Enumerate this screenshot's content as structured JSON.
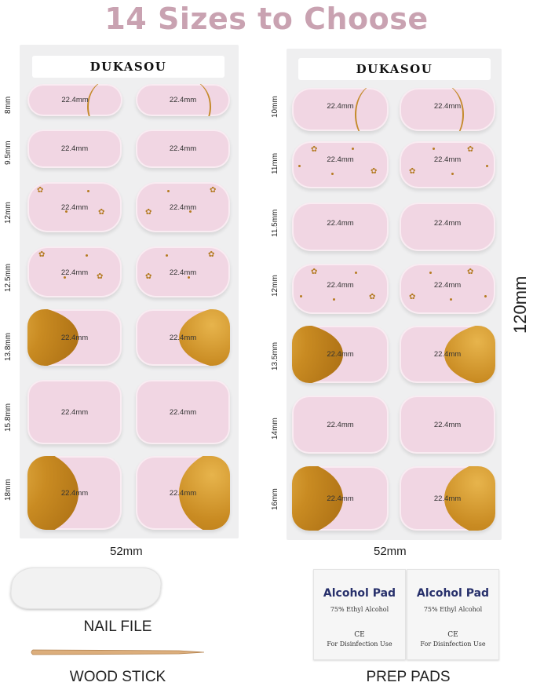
{
  "title": "14 Sizes to Choose",
  "brand": "DUKASOU",
  "nail_length_label": "22.4mm",
  "left_sheet": {
    "sizes": [
      "8mm",
      "9.5mm",
      "12mm",
      "12.5mm",
      "13.8mm",
      "15.8mm",
      "18mm"
    ],
    "width_label": "52mm"
  },
  "right_sheet": {
    "sizes": [
      "10mm",
      "11mm",
      "11.5mm",
      "12mm",
      "13.5mm",
      "14mm",
      "16mm"
    ],
    "width_label": "52mm",
    "height_label": "120mm"
  },
  "accessories": {
    "nail_file": "NAIL FILE",
    "wood_stick": "WOOD STICK",
    "prep_pads": "PREP PADS",
    "pad_title": "Alcohol Pad",
    "pad_subtitle": "75% Ethyl Alcohol",
    "pad_mark": "CE",
    "pad_use": "For Disinfection Use"
  },
  "colors": {
    "title": "#c9a2b1",
    "nail_pink": "#f1d6e3",
    "gold": "#c98b22",
    "pad_text": "#27306b"
  }
}
